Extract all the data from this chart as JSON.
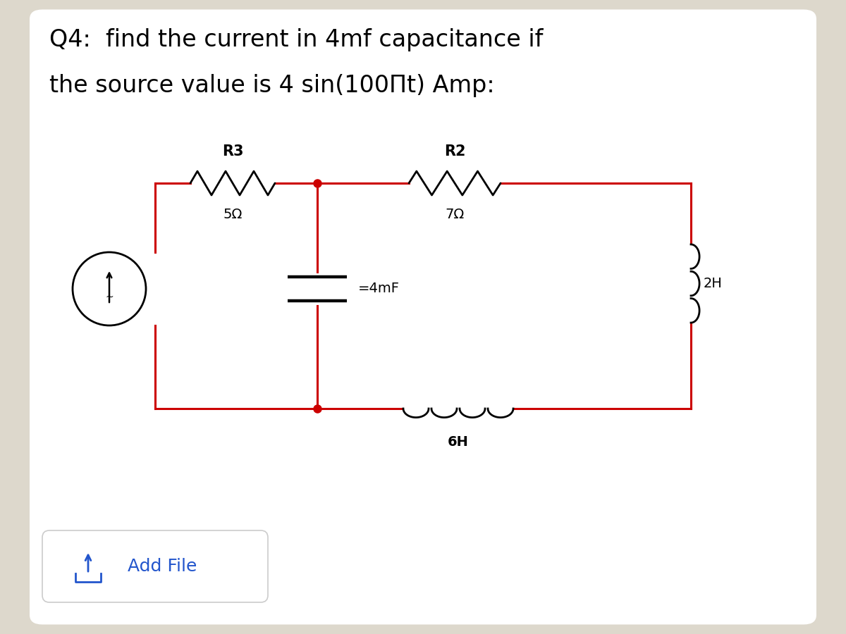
{
  "title_line1": "Q4:  find the current in 4mf capacitance if",
  "title_line2": "the source value is 4 sin(100Πt) Amp:",
  "bg_color": "#ddd8cc",
  "card_color": "#ffffff",
  "wire_color": "#cc0000",
  "comp_color": "#000000",
  "title_fontsize": 24,
  "add_file_text": "Add File",
  "add_file_color": "#2255cc",
  "btn_edge_color": "#cccccc"
}
